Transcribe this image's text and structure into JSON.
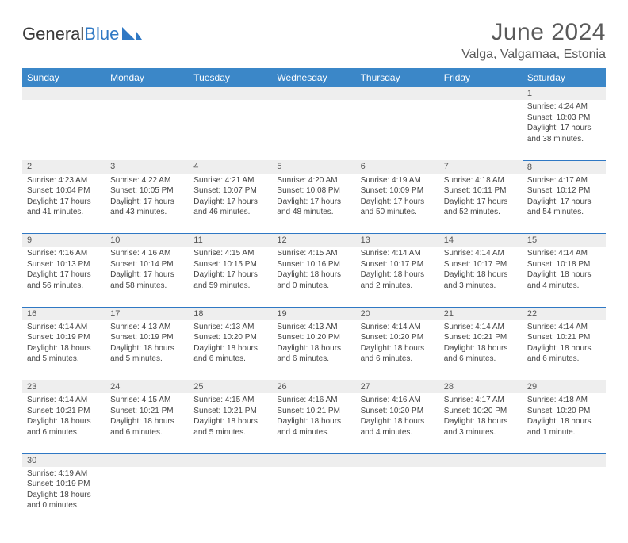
{
  "brand": {
    "part1": "General",
    "part2": "Blue"
  },
  "title": "June 2024",
  "location": "Valga, Valgamaa, Estonia",
  "colors": {
    "header_bg": "#3b87c8",
    "header_text": "#ffffff",
    "rule": "#2f78c4",
    "daynum_bg": "#eeeeee",
    "text": "#444444",
    "title_text": "#5a5a5a"
  },
  "weekdays": [
    "Sunday",
    "Monday",
    "Tuesday",
    "Wednesday",
    "Thursday",
    "Friday",
    "Saturday"
  ],
  "weeks": [
    [
      null,
      null,
      null,
      null,
      null,
      null,
      {
        "n": "1",
        "sr": "Sunrise: 4:24 AM",
        "ss": "Sunset: 10:03 PM",
        "dl1": "Daylight: 17 hours",
        "dl2": "and 38 minutes."
      }
    ],
    [
      {
        "n": "2",
        "sr": "Sunrise: 4:23 AM",
        "ss": "Sunset: 10:04 PM",
        "dl1": "Daylight: 17 hours",
        "dl2": "and 41 minutes."
      },
      {
        "n": "3",
        "sr": "Sunrise: 4:22 AM",
        "ss": "Sunset: 10:05 PM",
        "dl1": "Daylight: 17 hours",
        "dl2": "and 43 minutes."
      },
      {
        "n": "4",
        "sr": "Sunrise: 4:21 AM",
        "ss": "Sunset: 10:07 PM",
        "dl1": "Daylight: 17 hours",
        "dl2": "and 46 minutes."
      },
      {
        "n": "5",
        "sr": "Sunrise: 4:20 AM",
        "ss": "Sunset: 10:08 PM",
        "dl1": "Daylight: 17 hours",
        "dl2": "and 48 minutes."
      },
      {
        "n": "6",
        "sr": "Sunrise: 4:19 AM",
        "ss": "Sunset: 10:09 PM",
        "dl1": "Daylight: 17 hours",
        "dl2": "and 50 minutes."
      },
      {
        "n": "7",
        "sr": "Sunrise: 4:18 AM",
        "ss": "Sunset: 10:11 PM",
        "dl1": "Daylight: 17 hours",
        "dl2": "and 52 minutes."
      },
      {
        "n": "8",
        "sr": "Sunrise: 4:17 AM",
        "ss": "Sunset: 10:12 PM",
        "dl1": "Daylight: 17 hours",
        "dl2": "and 54 minutes."
      }
    ],
    [
      {
        "n": "9",
        "sr": "Sunrise: 4:16 AM",
        "ss": "Sunset: 10:13 PM",
        "dl1": "Daylight: 17 hours",
        "dl2": "and 56 minutes."
      },
      {
        "n": "10",
        "sr": "Sunrise: 4:16 AM",
        "ss": "Sunset: 10:14 PM",
        "dl1": "Daylight: 17 hours",
        "dl2": "and 58 minutes."
      },
      {
        "n": "11",
        "sr": "Sunrise: 4:15 AM",
        "ss": "Sunset: 10:15 PM",
        "dl1": "Daylight: 17 hours",
        "dl2": "and 59 minutes."
      },
      {
        "n": "12",
        "sr": "Sunrise: 4:15 AM",
        "ss": "Sunset: 10:16 PM",
        "dl1": "Daylight: 18 hours",
        "dl2": "and 0 minutes."
      },
      {
        "n": "13",
        "sr": "Sunrise: 4:14 AM",
        "ss": "Sunset: 10:17 PM",
        "dl1": "Daylight: 18 hours",
        "dl2": "and 2 minutes."
      },
      {
        "n": "14",
        "sr": "Sunrise: 4:14 AM",
        "ss": "Sunset: 10:17 PM",
        "dl1": "Daylight: 18 hours",
        "dl2": "and 3 minutes."
      },
      {
        "n": "15",
        "sr": "Sunrise: 4:14 AM",
        "ss": "Sunset: 10:18 PM",
        "dl1": "Daylight: 18 hours",
        "dl2": "and 4 minutes."
      }
    ],
    [
      {
        "n": "16",
        "sr": "Sunrise: 4:14 AM",
        "ss": "Sunset: 10:19 PM",
        "dl1": "Daylight: 18 hours",
        "dl2": "and 5 minutes."
      },
      {
        "n": "17",
        "sr": "Sunrise: 4:13 AM",
        "ss": "Sunset: 10:19 PM",
        "dl1": "Daylight: 18 hours",
        "dl2": "and 5 minutes."
      },
      {
        "n": "18",
        "sr": "Sunrise: 4:13 AM",
        "ss": "Sunset: 10:20 PM",
        "dl1": "Daylight: 18 hours",
        "dl2": "and 6 minutes."
      },
      {
        "n": "19",
        "sr": "Sunrise: 4:13 AM",
        "ss": "Sunset: 10:20 PM",
        "dl1": "Daylight: 18 hours",
        "dl2": "and 6 minutes."
      },
      {
        "n": "20",
        "sr": "Sunrise: 4:14 AM",
        "ss": "Sunset: 10:20 PM",
        "dl1": "Daylight: 18 hours",
        "dl2": "and 6 minutes."
      },
      {
        "n": "21",
        "sr": "Sunrise: 4:14 AM",
        "ss": "Sunset: 10:21 PM",
        "dl1": "Daylight: 18 hours",
        "dl2": "and 6 minutes."
      },
      {
        "n": "22",
        "sr": "Sunrise: 4:14 AM",
        "ss": "Sunset: 10:21 PM",
        "dl1": "Daylight: 18 hours",
        "dl2": "and 6 minutes."
      }
    ],
    [
      {
        "n": "23",
        "sr": "Sunrise: 4:14 AM",
        "ss": "Sunset: 10:21 PM",
        "dl1": "Daylight: 18 hours",
        "dl2": "and 6 minutes."
      },
      {
        "n": "24",
        "sr": "Sunrise: 4:15 AM",
        "ss": "Sunset: 10:21 PM",
        "dl1": "Daylight: 18 hours",
        "dl2": "and 6 minutes."
      },
      {
        "n": "25",
        "sr": "Sunrise: 4:15 AM",
        "ss": "Sunset: 10:21 PM",
        "dl1": "Daylight: 18 hours",
        "dl2": "and 5 minutes."
      },
      {
        "n": "26",
        "sr": "Sunrise: 4:16 AM",
        "ss": "Sunset: 10:21 PM",
        "dl1": "Daylight: 18 hours",
        "dl2": "and 4 minutes."
      },
      {
        "n": "27",
        "sr": "Sunrise: 4:16 AM",
        "ss": "Sunset: 10:20 PM",
        "dl1": "Daylight: 18 hours",
        "dl2": "and 4 minutes."
      },
      {
        "n": "28",
        "sr": "Sunrise: 4:17 AM",
        "ss": "Sunset: 10:20 PM",
        "dl1": "Daylight: 18 hours",
        "dl2": "and 3 minutes."
      },
      {
        "n": "29",
        "sr": "Sunrise: 4:18 AM",
        "ss": "Sunset: 10:20 PM",
        "dl1": "Daylight: 18 hours",
        "dl2": "and 1 minute."
      }
    ],
    [
      {
        "n": "30",
        "sr": "Sunrise: 4:19 AM",
        "ss": "Sunset: 10:19 PM",
        "dl1": "Daylight: 18 hours",
        "dl2": "and 0 minutes."
      },
      null,
      null,
      null,
      null,
      null,
      null
    ]
  ]
}
